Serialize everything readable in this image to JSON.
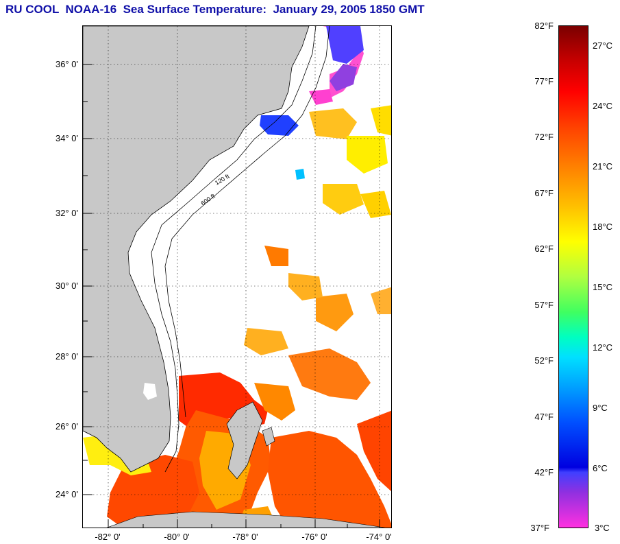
{
  "title": "RU COOL  NOAA-16  Sea Surface Temperature:  January 29, 2005 1850 GMT",
  "map": {
    "lat_labels": [
      "36° 0'",
      "34° 0'",
      "32° 0'",
      "30° 0'",
      "28° 0'",
      "26° 0'",
      "24° 0'"
    ],
    "lon_labels": [
      "-82° 0'",
      "-80° 0'",
      "-78° 0'",
      "-76° 0'",
      "-74° 0'"
    ],
    "contour_labels": [
      "600 ft",
      "120 ft"
    ],
    "colors": {
      "land": "#c8c8c8",
      "ocean": "#ffffff",
      "gridline": "#000000"
    }
  },
  "colorbar": {
    "fahrenheit": [
      "82°F",
      "77°F",
      "72°F",
      "67°F",
      "62°F",
      "57°F",
      "52°F",
      "47°F",
      "42°F",
      "37°F"
    ],
    "celsius": [
      "27°C",
      "24°C",
      "21°C",
      "18°C",
      "15°C",
      "12°C",
      "9°C",
      "6°C",
      "3°C"
    ]
  }
}
